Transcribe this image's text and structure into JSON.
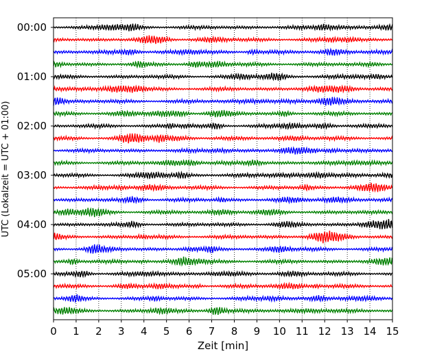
{
  "chart_data": {
    "type": "line",
    "title": "",
    "xlabel": "Zeit  [min]",
    "ylabel": "UTC (Lokalzeit = UTC + 01:00)",
    "xlim": [
      0,
      15
    ],
    "x_ticks": [
      "0",
      "1",
      "2",
      "3",
      "4",
      "5",
      "6",
      "7",
      "8",
      "9",
      "10",
      "11",
      "12",
      "13",
      "14",
      "15"
    ],
    "y_ticks": [
      "00:00",
      "01:00",
      "02:00",
      "03:00",
      "04:00",
      "05:00"
    ],
    "trace_interval_min": 15,
    "trace_count": 24,
    "trace_colors": [
      "#000000",
      "#ff0000",
      "#0000ff",
      "#008000"
    ],
    "grid_x": true,
    "grid_style": "dotted",
    "legend": "none"
  }
}
